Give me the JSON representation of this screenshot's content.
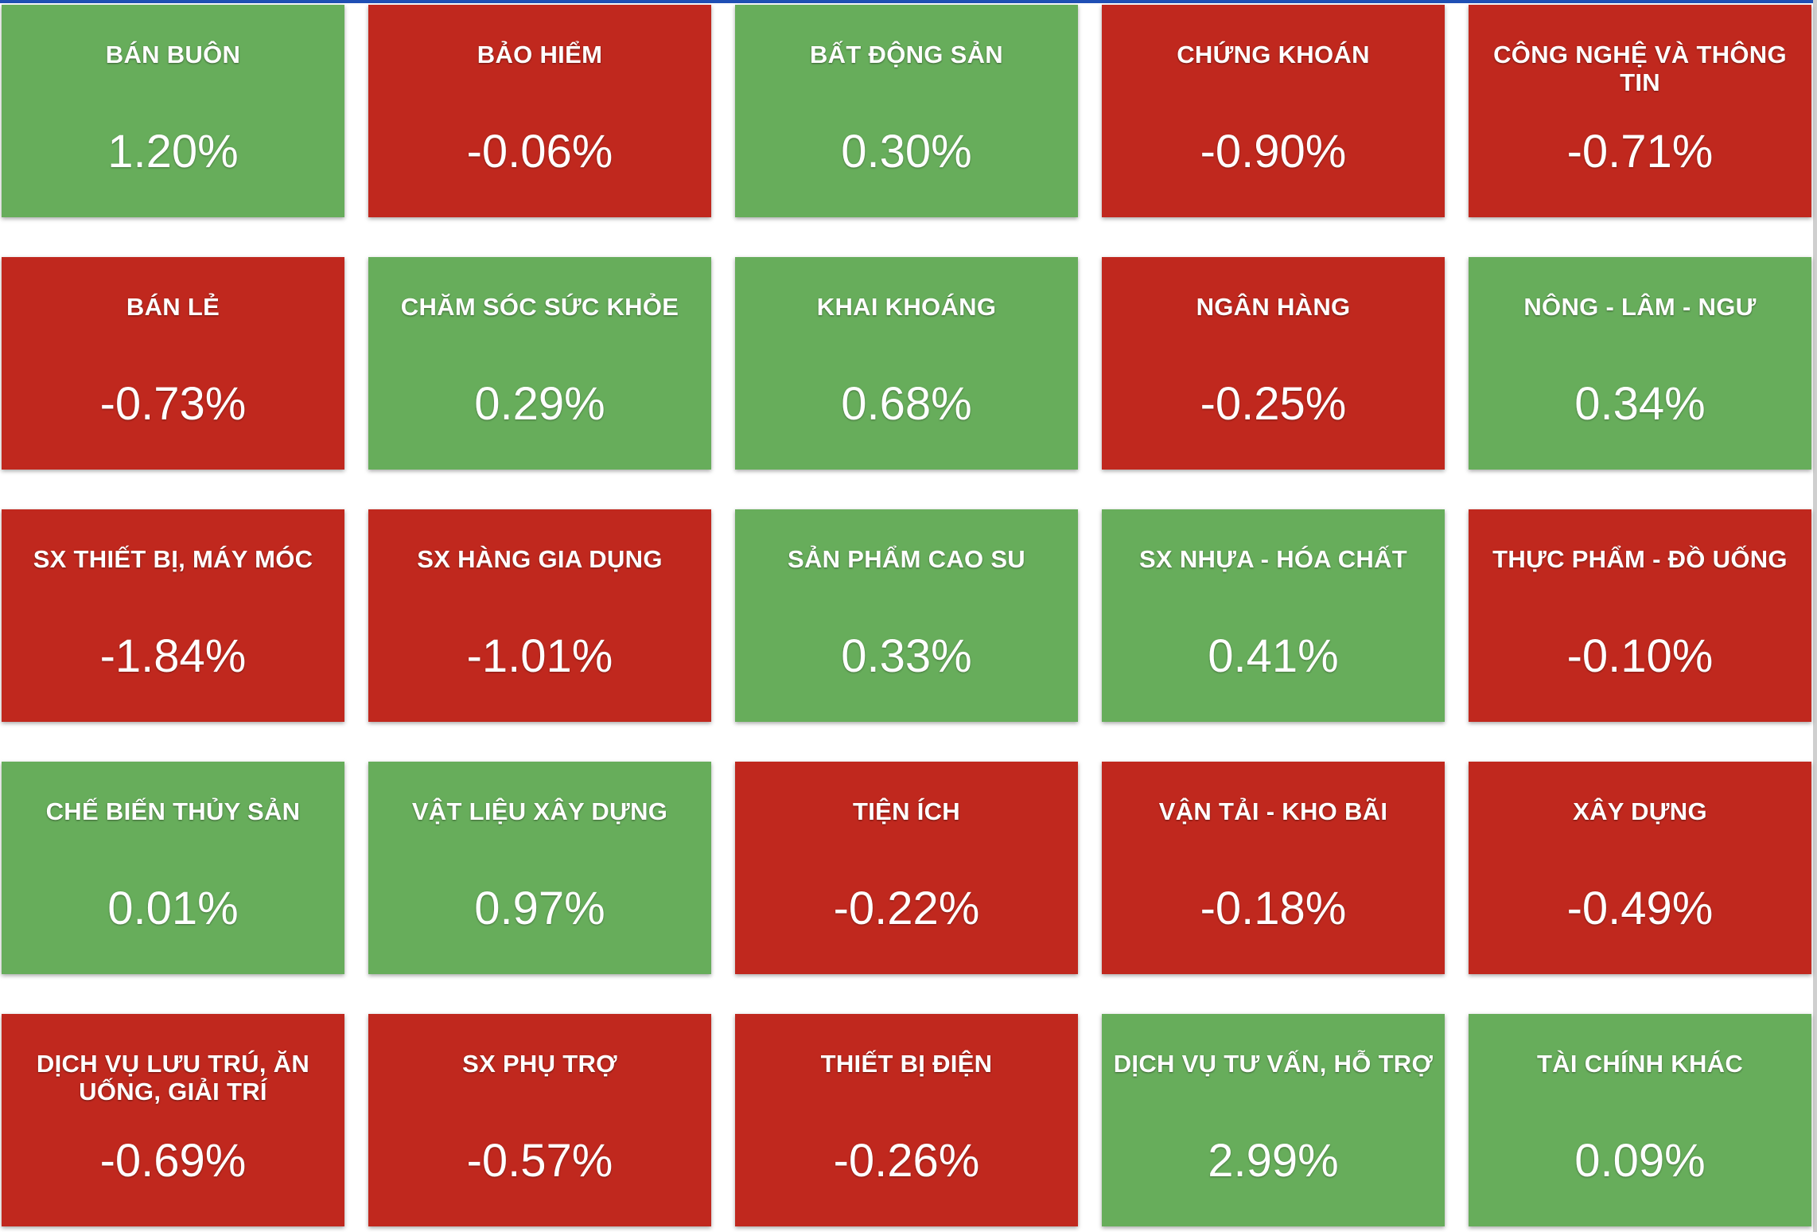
{
  "colors": {
    "up": "#67ad5b",
    "down": "#c0281e",
    "text": "#ffffff"
  },
  "sectors": [
    {
      "name": "BÁN BUÔN",
      "change": "1.20%",
      "trend": "up"
    },
    {
      "name": "BẢO HIỂM",
      "change": "-0.06%",
      "trend": "down"
    },
    {
      "name": "BẤT ĐỘNG SẢN",
      "change": "0.30%",
      "trend": "up"
    },
    {
      "name": "CHỨNG KHOÁN",
      "change": "-0.90%",
      "trend": "down"
    },
    {
      "name": "CÔNG NGHỆ VÀ THÔNG TIN",
      "change": "-0.71%",
      "trend": "down"
    },
    {
      "name": "BÁN LẺ",
      "change": "-0.73%",
      "trend": "down"
    },
    {
      "name": "CHĂM SÓC SỨC KHỎE",
      "change": "0.29%",
      "trend": "up"
    },
    {
      "name": "KHAI KHOÁNG",
      "change": "0.68%",
      "trend": "up"
    },
    {
      "name": "NGÂN HÀNG",
      "change": "-0.25%",
      "trend": "down"
    },
    {
      "name": "NÔNG - LÂM - NGƯ",
      "change": "0.34%",
      "trend": "up"
    },
    {
      "name": "SX THIẾT BỊ, MÁY MÓC",
      "change": "-1.84%",
      "trend": "down"
    },
    {
      "name": "SX HÀNG GIA DỤNG",
      "change": "-1.01%",
      "trend": "down"
    },
    {
      "name": "SẢN PHẨM CAO SU",
      "change": "0.33%",
      "trend": "up"
    },
    {
      "name": "SX NHỰA - HÓA CHẤT",
      "change": "0.41%",
      "trend": "up"
    },
    {
      "name": "THỰC PHẨM - ĐỒ UỐNG",
      "change": "-0.10%",
      "trend": "down"
    },
    {
      "name": "CHẾ BIẾN THỦY SẢN",
      "change": "0.01%",
      "trend": "up"
    },
    {
      "name": "VẬT LIỆU XÂY DỰNG",
      "change": "0.97%",
      "trend": "up"
    },
    {
      "name": "TIỆN ÍCH",
      "change": "-0.22%",
      "trend": "down"
    },
    {
      "name": "VẬN TẢI - KHO BÃI",
      "change": "-0.18%",
      "trend": "down"
    },
    {
      "name": "XÂY DỰNG",
      "change": "-0.49%",
      "trend": "down"
    },
    {
      "name": "DỊCH VỤ LƯU TRÚ, ĂN UỐNG, GIẢI TRÍ",
      "change": "-0.69%",
      "trend": "down"
    },
    {
      "name": "SX PHỤ TRỢ",
      "change": "-0.57%",
      "trend": "down"
    },
    {
      "name": "THIẾT BỊ ĐIỆN",
      "change": "-0.26%",
      "trend": "down"
    },
    {
      "name": "DỊCH VỤ TƯ VẤN, HỖ TRỢ",
      "change": "2.99%",
      "trend": "up"
    },
    {
      "name": "TÀI CHÍNH KHÁC",
      "change": "0.09%",
      "trend": "up"
    }
  ]
}
